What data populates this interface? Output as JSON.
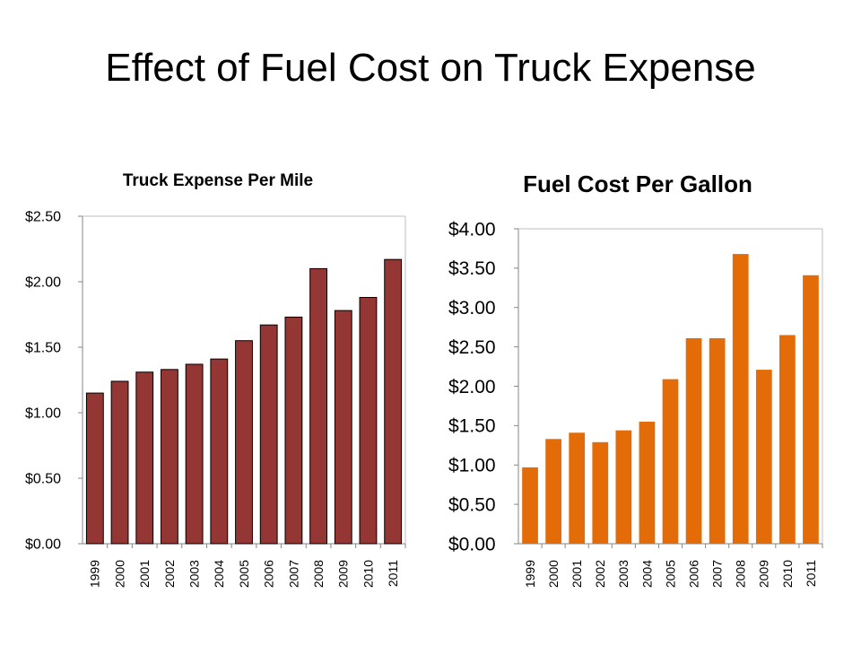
{
  "slide": {
    "title": "Effect of Fuel Cost on Truck Expense"
  },
  "chart_data": [
    {
      "type": "bar",
      "title": "Truck Expense Per Mile",
      "xlabel": "",
      "ylabel": "",
      "categories": [
        "1999",
        "2000",
        "2001",
        "2002",
        "2003",
        "2004",
        "2005",
        "2006",
        "2007",
        "2008",
        "2009",
        "2010",
        "2011"
      ],
      "values": [
        1.15,
        1.24,
        1.31,
        1.33,
        1.37,
        1.41,
        1.55,
        1.67,
        1.73,
        2.1,
        1.78,
        1.88,
        2.17
      ],
      "ylim": [
        0,
        2.5
      ],
      "yticks": [
        "$0.00",
        "$0.50",
        "$1.00",
        "$1.50",
        "$2.00",
        "$2.50"
      ],
      "color": "#943634",
      "edge_color": "#000000",
      "grid": false,
      "legend": "none"
    },
    {
      "type": "bar",
      "title": "Fuel Cost Per Gallon",
      "xlabel": "",
      "ylabel": "",
      "categories": [
        "1999",
        "2000",
        "2001",
        "2002",
        "2003",
        "2004",
        "2005",
        "2006",
        "2007",
        "2008",
        "2009",
        "2010",
        "2011"
      ],
      "values": [
        0.97,
        1.33,
        1.41,
        1.29,
        1.44,
        1.55,
        2.09,
        2.61,
        2.61,
        3.68,
        2.21,
        2.65,
        3.41
      ],
      "ylim": [
        0,
        4.0
      ],
      "yticks": [
        "$0.00",
        "$0.50",
        "$1.00",
        "$1.50",
        "$2.00",
        "$2.50",
        "$3.00",
        "$3.50",
        "$4.00"
      ],
      "color": "#e36c09",
      "edge_color": "#e36c09",
      "grid": false,
      "legend": "none"
    }
  ]
}
